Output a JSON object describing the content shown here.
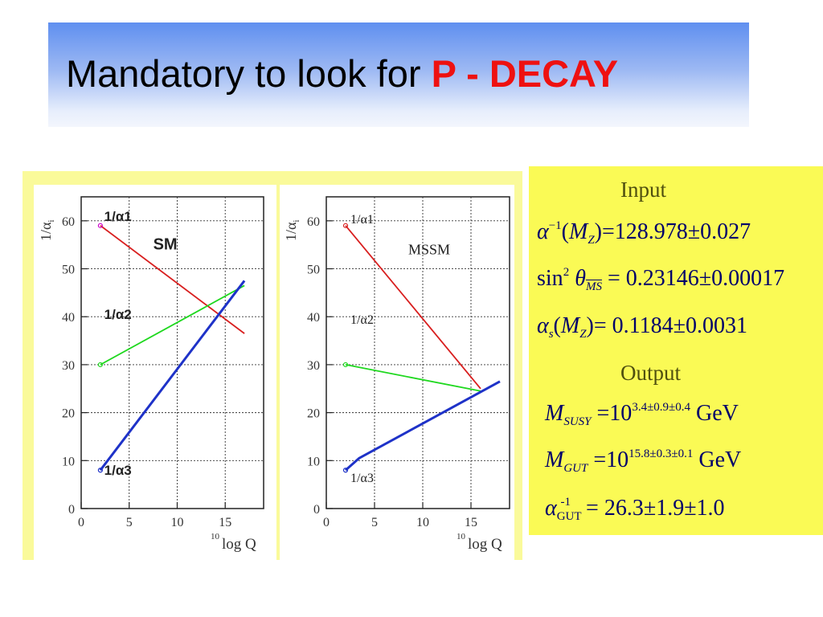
{
  "title": {
    "main": "Mandatory to look for",
    "accent": "P - DECAY"
  },
  "chart_data": [
    {
      "type": "line",
      "annotation": "SM",
      "ylabel": "1/α",
      "ylabel_sub": "i",
      "xlabel_sup": "10",
      "xlabel": "log Q",
      "xlim": [
        0,
        19
      ],
      "ylim": [
        0,
        65
      ],
      "xticks": [
        0,
        5,
        10,
        15
      ],
      "yticks": [
        0,
        10,
        20,
        30,
        40,
        50,
        60
      ],
      "grid": true,
      "series": [
        {
          "name": "1/α1",
          "color": "#d81e1e",
          "x": [
            2,
            17
          ],
          "y": [
            59,
            36.5
          ]
        },
        {
          "name": "1/α2",
          "color": "#1ed81e",
          "x": [
            2,
            17
          ],
          "y": [
            30,
            46.5
          ]
        },
        {
          "name": "1/α3",
          "color": "#1e32c8",
          "x": [
            2,
            17
          ],
          "y": [
            8,
            47.5
          ]
        }
      ]
    },
    {
      "type": "line",
      "annotation": "MSSM",
      "ylabel": "1/α",
      "ylabel_sub": "i",
      "xlabel_sup": "10",
      "xlabel": "log Q",
      "xlim": [
        0,
        19
      ],
      "ylim": [
        0,
        65
      ],
      "xticks": [
        0,
        5,
        10,
        15
      ],
      "yticks": [
        0,
        10,
        20,
        30,
        40,
        50,
        60
      ],
      "grid": true,
      "series": [
        {
          "name": "1/α1",
          "color": "#d81e1e",
          "x": [
            2,
            16
          ],
          "y": [
            59,
            25
          ]
        },
        {
          "name": "1/α2",
          "color": "#1ed81e",
          "x": [
            2,
            16
          ],
          "y": [
            30,
            24.5
          ]
        },
        {
          "name": "1/α3",
          "color": "#1e32c8",
          "x": [
            2,
            3.4,
            18
          ],
          "y": [
            8,
            10.5,
            26.5
          ]
        }
      ]
    }
  ],
  "io": {
    "input_heading": "Input",
    "output_heading": "Output",
    "alpha_mz": "=128.978±0.027",
    "sin_theta": "= 0.23146±0.00017",
    "alpha_s": "= 0.1184±0.0031",
    "m_susy_base": "=10",
    "m_susy_exp": "3.4±0.9±0.4",
    "m_gut_base": "=10",
    "m_gut_exp": "15.8±0.3±0.1",
    "unit": "GeV",
    "alpha_gut": "= 26.3±1.9±1.0"
  }
}
